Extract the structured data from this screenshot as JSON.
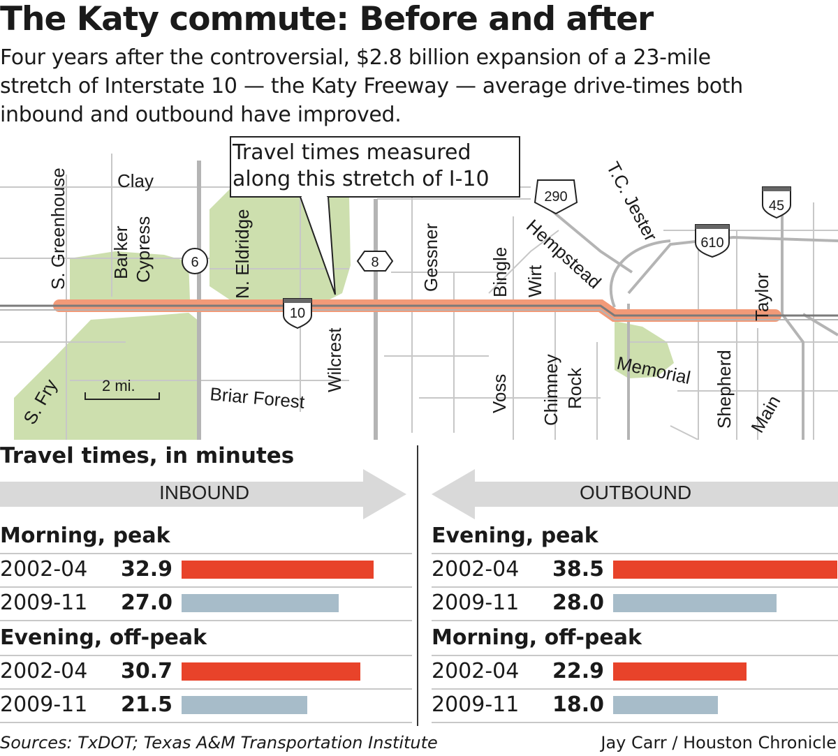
{
  "header": {
    "title": "The Katy commute: Before and after",
    "subtitle": "Four years after the controversial, $2.8 billion expansion of a 23-mile stretch of Interstate 10 — the Katy Freeway — average drive-times both inbound and outbound have improved."
  },
  "map": {
    "callout": [
      "Travel times measured",
      "along this stretch of I-10"
    ],
    "scale_label": "2 mi.",
    "shields": {
      "i10": "10",
      "i610": "610",
      "i45": "45",
      "us290": "290",
      "hw6": "6",
      "bw8": "8"
    },
    "streets": {
      "s_greenhouse": "S. Greenhouse",
      "clay": "Clay",
      "barker": "Barker",
      "cypress": "Cypress",
      "n_eldridge": "N. Eldridge",
      "gessner": "Gessner",
      "bingle": "Bingle",
      "wirt": "Wirt",
      "hempstead": "Hempstead",
      "tc_jester": "T.C. Jester",
      "taylor": "Taylor",
      "wilcrest": "Wilcrest",
      "briar_forest": "Briar Forest",
      "s_fry": "S. Fry",
      "voss": "Voss",
      "chimney": "Chimney",
      "rock": "Rock",
      "memorial": "Memorial",
      "shepherd": "Shepherd",
      "main": "Main"
    },
    "colors": {
      "highlight": "#f29a78",
      "park": "#cddfae",
      "road": "#b4b4b4"
    }
  },
  "section_title": "Travel times, in minutes",
  "colors": {
    "before": "#e8432a",
    "after": "#a7bcc9",
    "arrow": "#d9d9d9"
  },
  "chart_data": [
    {
      "type": "bar",
      "direction": "INBOUND",
      "groups": [
        {
          "title": "Morning, peak",
          "rows": [
            {
              "period": "2002-04",
              "value": 32.9,
              "label": "32.9"
            },
            {
              "period": "2009-11",
              "value": 27.0,
              "label": "27.0"
            }
          ]
        },
        {
          "title": "Evening, off-peak",
          "rows": [
            {
              "period": "2002-04",
              "value": 30.7,
              "label": "30.7"
            },
            {
              "period": "2009-11",
              "value": 21.5,
              "label": "21.5"
            }
          ]
        }
      ]
    },
    {
      "type": "bar",
      "direction": "OUTBOUND",
      "groups": [
        {
          "title": "Evening, peak",
          "rows": [
            {
              "period": "2002-04",
              "value": 38.5,
              "label": "38.5"
            },
            {
              "period": "2009-11",
              "value": 28.0,
              "label": "28.0"
            }
          ]
        },
        {
          "title": "Morning, off-peak",
          "rows": [
            {
              "period": "2002-04",
              "value": 22.9,
              "label": "22.9"
            },
            {
              "period": "2009-11",
              "value": 18.0,
              "label": "18.0"
            }
          ]
        }
      ]
    }
  ],
  "footer": {
    "sources": "Sources: TxDOT; Texas A&M Transportation Institute",
    "credit": "Jay Carr / Houston Chronicle"
  }
}
